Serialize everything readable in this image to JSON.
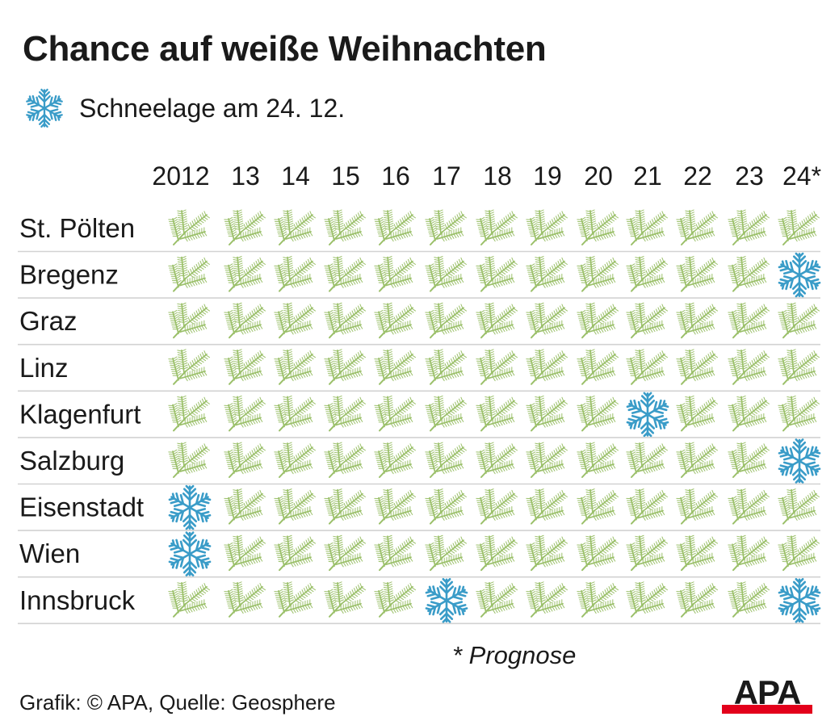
{
  "title": "Chance auf weiße Weihnachten",
  "legend": {
    "icon": "snowflake-icon",
    "label": "Schneelage am 24. 12."
  },
  "footnote": "* Prognose",
  "source": "Grafik: © APA, Quelle: Geosphere",
  "logo": {
    "text": "APA",
    "colors": {
      "text": "#1a1a1a",
      "bar": "#e3001b"
    }
  },
  "colors": {
    "snow": "#3a9cc8",
    "branch": "#9bc06a",
    "divider": "#d2d2d2"
  },
  "chart_data": {
    "type": "table",
    "columns": [
      "2012",
      "13",
      "14",
      "15",
      "16",
      "17",
      "18",
      "19",
      "20",
      "21",
      "22",
      "23",
      "24*"
    ],
    "rows": [
      {
        "city": "St. Pölten",
        "values": [
          "fir",
          "fir",
          "fir",
          "fir",
          "fir",
          "fir",
          "fir",
          "fir",
          "fir",
          "fir",
          "fir",
          "fir",
          "fir"
        ]
      },
      {
        "city": "Bregenz",
        "values": [
          "fir",
          "fir",
          "fir",
          "fir",
          "fir",
          "fir",
          "fir",
          "fir",
          "fir",
          "fir",
          "fir",
          "fir",
          "snow"
        ]
      },
      {
        "city": "Graz",
        "values": [
          "fir",
          "fir",
          "fir",
          "fir",
          "fir",
          "fir",
          "fir",
          "fir",
          "fir",
          "fir",
          "fir",
          "fir",
          "fir"
        ]
      },
      {
        "city": "Linz",
        "values": [
          "fir",
          "fir",
          "fir",
          "fir",
          "fir",
          "fir",
          "fir",
          "fir",
          "fir",
          "fir",
          "fir",
          "fir",
          "fir"
        ]
      },
      {
        "city": "Klagenfurt",
        "values": [
          "fir",
          "fir",
          "fir",
          "fir",
          "fir",
          "fir",
          "fir",
          "fir",
          "fir",
          "snow",
          "fir",
          "fir",
          "fir"
        ]
      },
      {
        "city": "Salzburg",
        "values": [
          "fir",
          "fir",
          "fir",
          "fir",
          "fir",
          "fir",
          "fir",
          "fir",
          "fir",
          "fir",
          "fir",
          "fir",
          "snow"
        ]
      },
      {
        "city": "Eisenstadt",
        "values": [
          "snow",
          "fir",
          "fir",
          "fir",
          "fir",
          "fir",
          "fir",
          "fir",
          "fir",
          "fir",
          "fir",
          "fir",
          "fir"
        ]
      },
      {
        "city": "Wien",
        "values": [
          "snow",
          "fir",
          "fir",
          "fir",
          "fir",
          "fir",
          "fir",
          "fir",
          "fir",
          "fir",
          "fir",
          "fir",
          "fir"
        ]
      },
      {
        "city": "Innsbruck",
        "values": [
          "fir",
          "fir",
          "fir",
          "fir",
          "fir",
          "snow",
          "fir",
          "fir",
          "fir",
          "fir",
          "fir",
          "fir",
          "snow"
        ]
      }
    ],
    "icons": {
      "snow": "snowflake-icon",
      "fir": "fir-branch-icon"
    }
  }
}
